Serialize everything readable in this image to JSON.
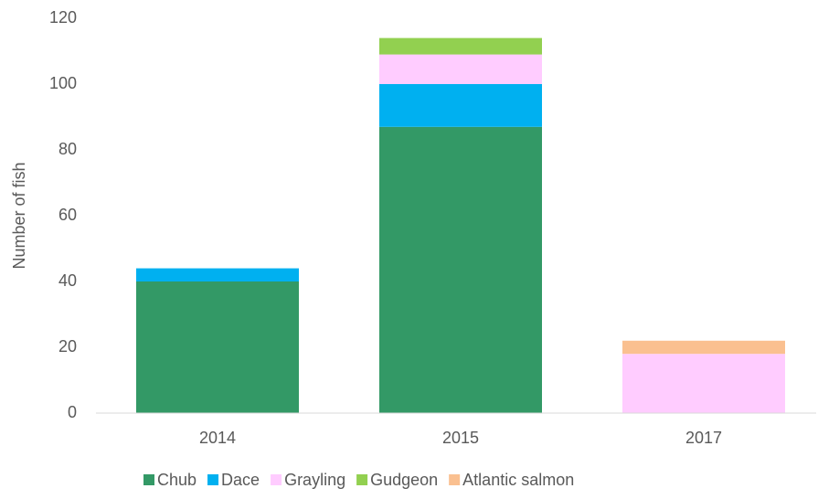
{
  "chart_data": {
    "type": "stacked_bar",
    "y_label": "Number of fish",
    "categories": [
      "2014",
      "2015",
      "2017"
    ],
    "series": [
      {
        "name": "Chub",
        "color": "#339966",
        "values": [
          40,
          87,
          0
        ]
      },
      {
        "name": "Dace",
        "color": "#00b0f0",
        "values": [
          4,
          13,
          0
        ]
      },
      {
        "name": "Grayling",
        "color": "#ffccff",
        "values": [
          0,
          9,
          18
        ]
      },
      {
        "name": "Gudgeon",
        "color": "#92d050",
        "values": [
          0,
          5,
          0
        ]
      },
      {
        "name": "Atlantic salmon",
        "color": "#fac090",
        "values": [
          0,
          0,
          4
        ]
      }
    ],
    "ylim": [
      0,
      120
    ],
    "yticks": [
      0,
      20,
      40,
      60,
      80,
      100,
      120
    ],
    "legend": "bottom"
  }
}
